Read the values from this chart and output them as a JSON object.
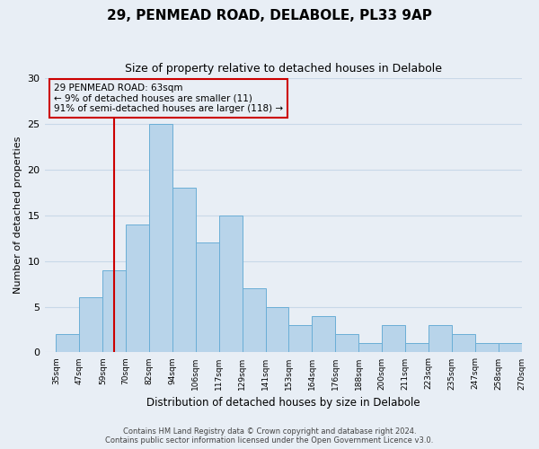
{
  "title": "29, PENMEAD ROAD, DELABOLE, PL33 9AP",
  "subtitle": "Size of property relative to detached houses in Delabole",
  "xlabel": "Distribution of detached houses by size in Delabole",
  "ylabel": "Number of detached properties",
  "bin_labels": [
    "35sqm",
    "47sqm",
    "59sqm",
    "70sqm",
    "82sqm",
    "94sqm",
    "106sqm",
    "117sqm",
    "129sqm",
    "141sqm",
    "153sqm",
    "164sqm",
    "176sqm",
    "188sqm",
    "200sqm",
    "211sqm",
    "223sqm",
    "235sqm",
    "247sqm",
    "258sqm",
    "270sqm"
  ],
  "bar_heights": [
    2,
    6,
    9,
    14,
    25,
    18,
    12,
    15,
    7,
    5,
    3,
    4,
    2,
    1,
    3,
    1,
    3,
    2,
    1,
    1
  ],
  "bar_color": "#b8d4ea",
  "bar_edge_color": "#6aaed6",
  "grid_color": "#c8d8e8",
  "background_color": "#e8eef5",
  "vline_color": "#cc0000",
  "vline_x": 2.5,
  "annotation_text": "29 PENMEAD ROAD: 63sqm\n← 9% of detached houses are smaller (11)\n91% of semi-detached houses are larger (118) →",
  "annotation_box_edgecolor": "#cc0000",
  "footer_line1": "Contains HM Land Registry data © Crown copyright and database right 2024.",
  "footer_line2": "Contains public sector information licensed under the Open Government Licence v3.0.",
  "ylim": [
    0,
    30
  ],
  "yticks": [
    0,
    5,
    10,
    15,
    20,
    25,
    30
  ]
}
